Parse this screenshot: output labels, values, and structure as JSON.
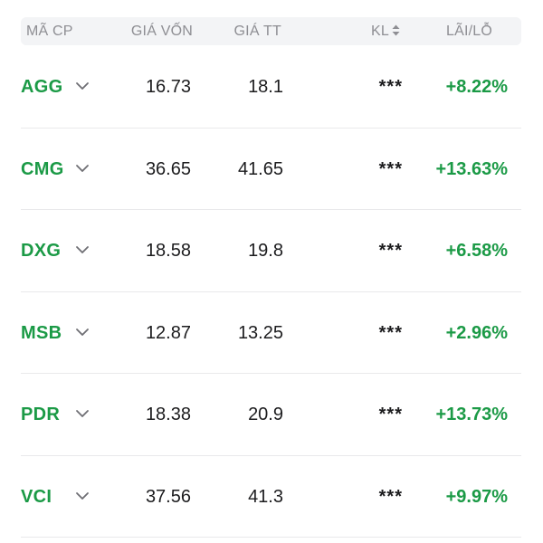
{
  "header": {
    "code": "MÃ CP",
    "cost": "GIÁ VỐN",
    "market": "GIÁ TT",
    "qty": "KL",
    "pnl": "LÃI/LỖ",
    "qty_icon": "sort-updown-icon"
  },
  "colors": {
    "positive": "#1b9a46",
    "header_bg": "#f3f4f6",
    "header_text": "#8e8e93",
    "divider": "#e9e9eb"
  },
  "rows": [
    {
      "code": "AGG",
      "cost": "16.73",
      "market": "18.1",
      "qty": "***",
      "pnl": "+8.22%"
    },
    {
      "code": "CMG",
      "cost": "36.65",
      "market": "41.65",
      "qty": "***",
      "pnl": "+13.63%"
    },
    {
      "code": "DXG",
      "cost": "18.58",
      "market": "19.8",
      "qty": "***",
      "pnl": "+6.58%"
    },
    {
      "code": "MSB",
      "cost": "12.87",
      "market": "13.25",
      "qty": "***",
      "pnl": "+2.96%"
    },
    {
      "code": "PDR",
      "cost": "18.38",
      "market": "20.9",
      "qty": "***",
      "pnl": "+13.73%"
    },
    {
      "code": "VCI",
      "cost": "37.56",
      "market": "41.3",
      "qty": "***",
      "pnl": "+9.97%"
    }
  ]
}
